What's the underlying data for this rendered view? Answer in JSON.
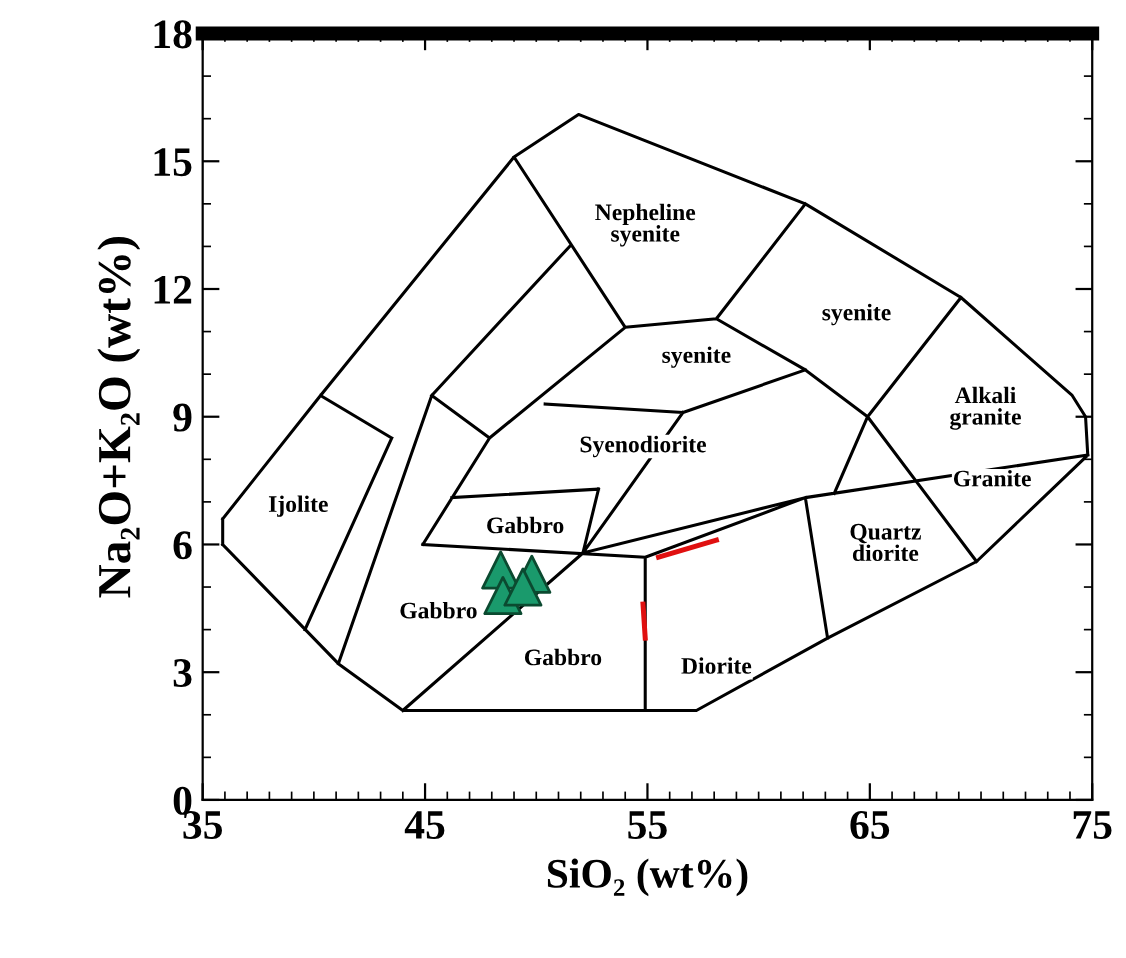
{
  "chart_data": {
    "type": "line",
    "xlabel": "SiO₂ (wt%)",
    "ylabel": "Na₂O+K₂O (wt%)",
    "xlim": [
      35,
      75
    ],
    "ylim": [
      0,
      18
    ],
    "xticks": [
      35,
      45,
      55,
      65,
      75
    ],
    "yticks": [
      0,
      3,
      6,
      9,
      12,
      15,
      18
    ],
    "grid": false,
    "line_style": "solid",
    "series": [
      {
        "color": "#000000",
        "x": [
          35.9,
          40.3,
          49.0,
          51.9,
          62.1,
          69.1,
          74.1,
          74.7,
          74.8,
          null,
          35.9,
          41.1,
          44.0,
          57.2,
          63.1,
          69.8,
          74.8,
          null,
          35.9,
          35.9,
          null,
          40.3,
          43.5,
          null,
          39.6,
          43.5,
          null,
          41.1,
          45.3,
          51.5,
          null,
          45.3,
          47.9,
          null,
          49.0,
          54.0,
          58.1,
          62.1,
          null,
          44.9,
          47.9,
          54.0,
          null,
          44.9,
          54.9,
          null,
          54.9,
          54.9,
          null,
          58.1,
          62.1,
          null,
          50.4,
          56.6,
          62.1,
          null,
          44.0,
          52.1,
          56.6,
          null,
          46.2,
          52.8,
          null,
          52.1,
          52.8,
          null,
          52.1,
          62.1,
          74.8,
          null,
          54.9,
          62.1,
          null,
          62.1,
          63.1,
          null,
          62.1,
          64.9,
          69.8,
          null,
          63.4,
          64.9,
          69.1
        ],
        "values": [
          6.6,
          9.5,
          15.1,
          16.1,
          14.0,
          11.8,
          9.5,
          9.0,
          8.1,
          null,
          6.0,
          3.2,
          2.1,
          2.1,
          3.8,
          5.6,
          8.1,
          null,
          6.0,
          6.6,
          null,
          9.5,
          8.5,
          null,
          4.0,
          8.5,
          null,
          3.2,
          9.5,
          13.0,
          null,
          9.5,
          8.5,
          null,
          15.1,
          11.1,
          11.3,
          14.0,
          null,
          6.0,
          8.5,
          11.1,
          null,
          6.0,
          5.7,
          null,
          5.7,
          2.1,
          null,
          11.3,
          10.1,
          null,
          9.3,
          9.1,
          10.1,
          null,
          2.1,
          5.8,
          9.1,
          null,
          7.1,
          7.3,
          null,
          5.8,
          7.3,
          null,
          5.8,
          7.1,
          8.1,
          null,
          5.7,
          7.1,
          null,
          7.1,
          3.8,
          null,
          10.1,
          9.0,
          5.6,
          null,
          7.2,
          9.0,
          11.8
        ]
      },
      {
        "color": "#e01010",
        "x": [
          55.5,
          58.1,
          null,
          54.8,
          54.9
        ],
        "values": [
          5.7,
          6.1,
          null,
          4.6,
          3.8
        ]
      },
      {
        "type": "scatter",
        "color": "#1a9a6c",
        "marker": "triangle",
        "x": [
          48.4,
          49.8,
          48.5,
          49.4
        ],
        "values": [
          5.4,
          5.3,
          4.8,
          5.0
        ]
      }
    ],
    "annotations": [
      "Nepheline\nsyenite",
      "syenite",
      "syenite",
      "Alkali\ngranite",
      "Syenodiorite",
      "Ijolite",
      "Gabbro",
      "Granite",
      "Quartz\ndiorite",
      "Gabbro",
      "Gabbro",
      "Diorite"
    ]
  }
}
